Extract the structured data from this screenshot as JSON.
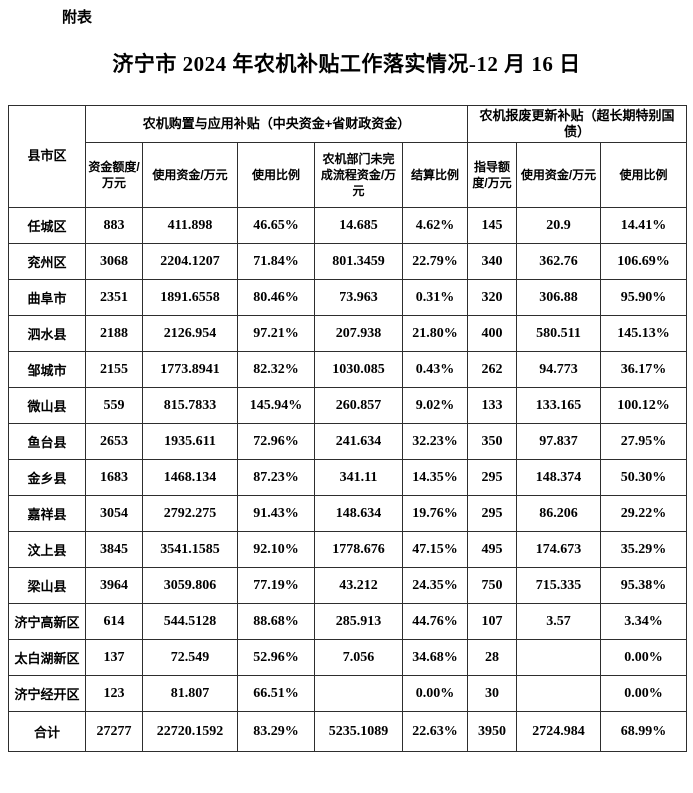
{
  "page": {
    "annotation": "附表",
    "title": "济宁市 2024 年农机补贴工作落实情况-12 月 16 日"
  },
  "table": {
    "corner_header": "县市区",
    "groups": [
      {
        "label": "农机购置与应用补贴（中央资金+省财政资金）",
        "colspan": 5
      },
      {
        "label": "农机报废更新补贴（超长期特别国债）",
        "colspan": 3
      }
    ],
    "sub_headers": [
      "资金额度/万元",
      "使用资金/万元",
      "使用比例",
      "农机部门未完成流程资金/万元",
      "结算比例",
      "指导额度/万元",
      "使用资金/万元",
      "使用比例"
    ],
    "rows": [
      {
        "name": "任城区",
        "values": [
          "883",
          "411.898",
          "46.65%",
          "14.685",
          "4.62%",
          "145",
          "20.9",
          "14.41%"
        ]
      },
      {
        "name": "兖州区",
        "values": [
          "3068",
          "2204.1207",
          "71.84%",
          "801.3459",
          "22.79%",
          "340",
          "362.76",
          "106.69%"
        ]
      },
      {
        "name": "曲阜市",
        "values": [
          "2351",
          "1891.6558",
          "80.46%",
          "73.963",
          "0.31%",
          "320",
          "306.88",
          "95.90%"
        ]
      },
      {
        "name": "泗水县",
        "values": [
          "2188",
          "2126.954",
          "97.21%",
          "207.938",
          "21.80%",
          "400",
          "580.511",
          "145.13%"
        ]
      },
      {
        "name": "邹城市",
        "values": [
          "2155",
          "1773.8941",
          "82.32%",
          "1030.085",
          "0.43%",
          "262",
          "94.773",
          "36.17%"
        ]
      },
      {
        "name": "微山县",
        "values": [
          "559",
          "815.7833",
          "145.94%",
          "260.857",
          "9.02%",
          "133",
          "133.165",
          "100.12%"
        ]
      },
      {
        "name": "鱼台县",
        "values": [
          "2653",
          "1935.611",
          "72.96%",
          "241.634",
          "32.23%",
          "350",
          "97.837",
          "27.95%"
        ]
      },
      {
        "name": "金乡县",
        "values": [
          "1683",
          "1468.134",
          "87.23%",
          "341.11",
          "14.35%",
          "295",
          "148.374",
          "50.30%"
        ]
      },
      {
        "name": "嘉祥县",
        "values": [
          "3054",
          "2792.275",
          "91.43%",
          "148.634",
          "19.76%",
          "295",
          "86.206",
          "29.22%"
        ]
      },
      {
        "name": "汶上县",
        "values": [
          "3845",
          "3541.1585",
          "92.10%",
          "1778.676",
          "47.15%",
          "495",
          "174.673",
          "35.29%"
        ]
      },
      {
        "name": "梁山县",
        "values": [
          "3964",
          "3059.806",
          "77.19%",
          "43.212",
          "24.35%",
          "750",
          "715.335",
          "95.38%"
        ]
      },
      {
        "name": "济宁高新区",
        "values": [
          "614",
          "544.5128",
          "88.68%",
          "285.913",
          "44.76%",
          "107",
          "3.57",
          "3.34%"
        ]
      },
      {
        "name": "太白湖新区",
        "values": [
          "137",
          "72.549",
          "52.96%",
          "7.056",
          "34.68%",
          "28",
          "",
          "0.00%"
        ]
      },
      {
        "name": "济宁经开区",
        "values": [
          "123",
          "81.807",
          "66.51%",
          "",
          "0.00%",
          "30",
          "",
          "0.00%"
        ]
      },
      {
        "name": "合计",
        "values": [
          "27277",
          "22720.1592",
          "83.29%",
          "5235.1089",
          "22.63%",
          "3950",
          "2724.984",
          "68.99%"
        ]
      }
    ]
  }
}
